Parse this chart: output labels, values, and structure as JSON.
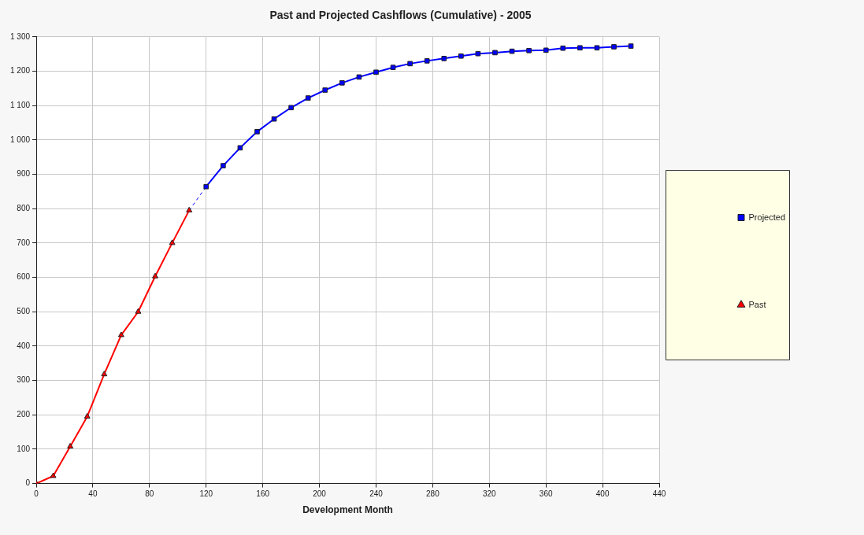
{
  "chart_data": {
    "type": "line",
    "title": "Past and Projected Cashflows (Cumulative) - 2005",
    "xlabel": "Development Month",
    "xlim": [
      0,
      440
    ],
    "xticks": [
      0,
      40,
      80,
      120,
      160,
      200,
      240,
      280,
      320,
      360,
      400,
      440
    ],
    "ylim": [
      0,
      1300
    ],
    "yticks": [
      0,
      100,
      200,
      300,
      400,
      500,
      600,
      700,
      800,
      900,
      {
        "value": 1000,
        "label": "1 000"
      },
      {
        "value": 1100,
        "label": "1 100"
      },
      {
        "value": 1200,
        "label": "1 200"
      },
      {
        "value": 1300,
        "label": "1 300"
      }
    ],
    "grid": true,
    "legend": "right",
    "line_style": "solid",
    "series": [
      {
        "name": "Projected",
        "color": "#0000ff",
        "marker": "square",
        "x": [
          120,
          132,
          144,
          156,
          168,
          180,
          192,
          204,
          216,
          228,
          240,
          252,
          264,
          276,
          288,
          300,
          312,
          324,
          336,
          348,
          360,
          372,
          384,
          396,
          408,
          420
        ],
        "values": [
          864,
          925,
          977,
          1024,
          1061,
          1094,
          1122,
          1145,
          1166,
          1183,
          1197,
          1211,
          1222,
          1230,
          1237,
          1244,
          1251,
          1254,
          1258,
          1260,
          1261,
          1267,
          1268,
          1268,
          1271,
          1273
        ]
      },
      {
        "name": "Past",
        "color": "#ff0000",
        "marker": "triangle",
        "x": [
          0,
          12,
          24,
          36,
          48,
          60,
          72,
          84,
          96,
          108
        ],
        "values": [
          0,
          22,
          108,
          195,
          318,
          432,
          500,
          603,
          700,
          795
        ]
      },
      {
        "color": "#0000ff",
        "marker": "none",
        "line_style": "dashed",
        "x": [
          108,
          120
        ],
        "values": [
          795,
          864
        ]
      }
    ]
  }
}
